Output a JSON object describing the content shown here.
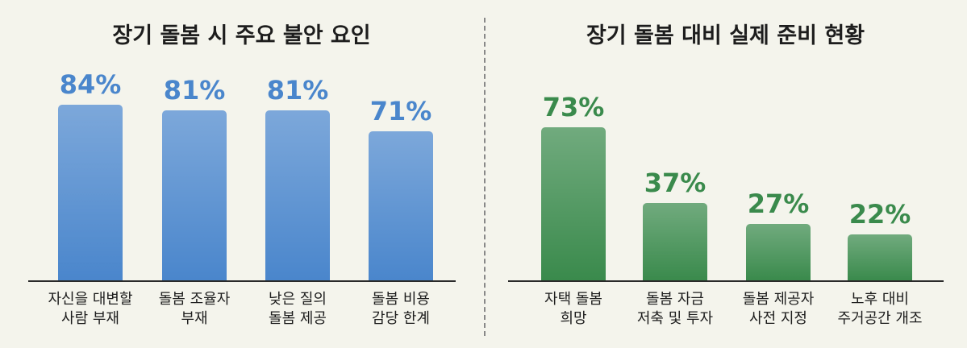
{
  "chart_data": [
    {
      "type": "bar",
      "title": "장기 돌봄 시 주요 불안 요인",
      "categories": [
        "자신을 대변할\n사람 부재",
        "돌봄 조율자\n부재",
        "낮은 질의\n돌봄 제공",
        "돌봄 비용\n감당 한계"
      ],
      "values": [
        84,
        81,
        81,
        71
      ],
      "value_labels": [
        "84%",
        "81%",
        "81%",
        "71%"
      ],
      "color": "#4a86cc"
    },
    {
      "type": "bar",
      "title": "장기 돌봄 대비 실제 준비 현황",
      "categories": [
        "자택 돌봄\n희망",
        "돌봄 자금\n저축 및 투자",
        "돌봄 제공자\n사전 지정",
        "노후 대비\n주거공간 개조"
      ],
      "values": [
        73,
        37,
        27,
        22
      ],
      "value_labels": [
        "73%",
        "37%",
        "27%",
        "22%"
      ],
      "color": "#3a8a4c"
    }
  ]
}
